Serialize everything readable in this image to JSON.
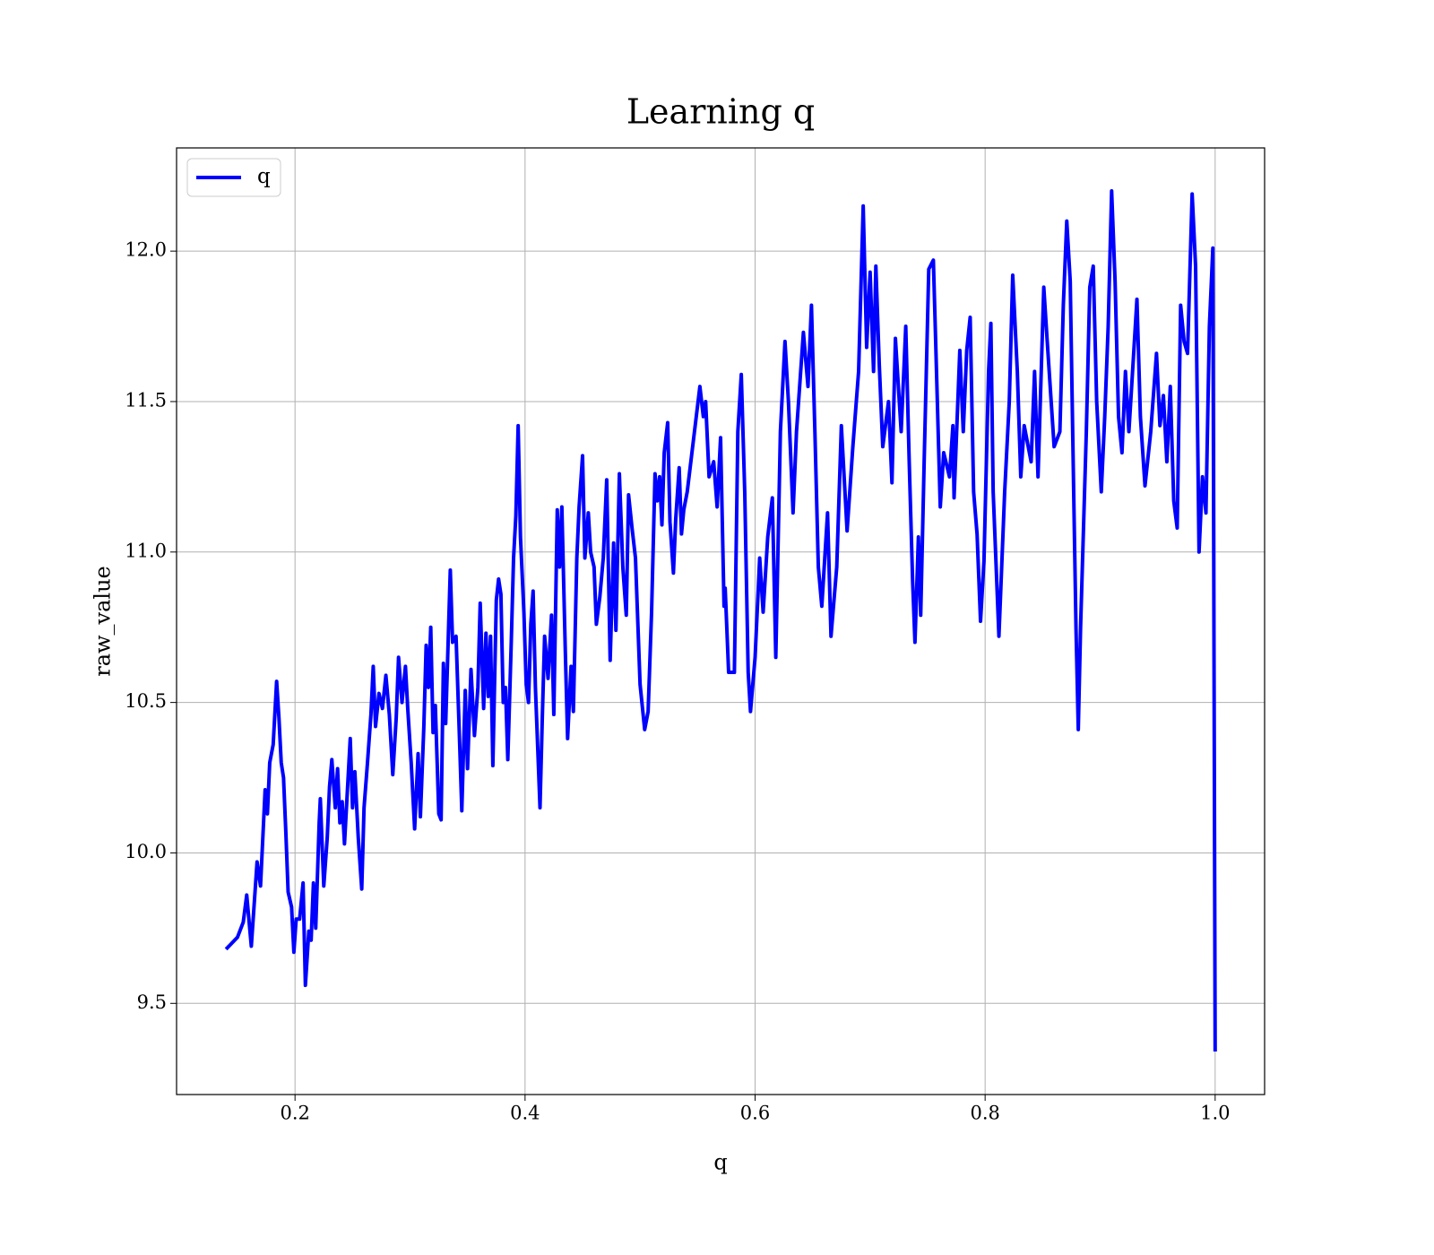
{
  "chart_data": {
    "type": "line",
    "title": "Learning q",
    "xlabel": "q",
    "ylabel": "raw_value",
    "x": [
      0.14,
      0.15,
      0.155,
      0.158,
      0.162,
      0.167,
      0.17,
      0.174,
      0.176,
      0.178,
      0.181,
      0.184,
      0.186,
      0.188,
      0.19,
      0.192,
      0.194,
      0.197,
      0.199,
      0.201,
      0.204,
      0.207,
      0.209,
      0.212,
      0.214,
      0.216,
      0.218,
      0.221,
      0.222,
      0.225,
      0.228,
      0.23,
      0.232,
      0.235,
      0.237,
      0.239,
      0.241,
      0.243,
      0.245,
      0.248,
      0.25,
      0.252,
      0.255,
      0.258,
      0.26,
      0.263,
      0.266,
      0.268,
      0.27,
      0.273,
      0.276,
      0.279,
      0.282,
      0.285,
      0.288,
      0.29,
      0.293,
      0.296,
      0.298,
      0.301,
      0.304,
      0.307,
      0.309,
      0.312,
      0.314,
      0.316,
      0.318,
      0.32,
      0.322,
      0.325,
      0.327,
      0.329,
      0.331,
      0.335,
      0.337,
      0.34,
      0.343,
      0.345,
      0.348,
      0.35,
      0.353,
      0.356,
      0.359,
      0.361,
      0.364,
      0.366,
      0.368,
      0.37,
      0.372,
      0.375,
      0.377,
      0.379,
      0.381,
      0.383,
      0.385,
      0.388,
      0.39,
      0.392,
      0.394,
      0.396,
      0.399,
      0.401,
      0.403,
      0.405,
      0.407,
      0.409,
      0.413,
      0.415,
      0.417,
      0.42,
      0.423,
      0.425,
      0.428,
      0.43,
      0.432,
      0.435,
      0.437,
      0.44,
      0.442,
      0.445,
      0.447,
      0.45,
      0.452,
      0.455,
      0.457,
      0.46,
      0.462,
      0.465,
      0.468,
      0.471,
      0.474,
      0.477,
      0.479,
      0.482,
      0.485,
      0.488,
      0.49,
      0.493,
      0.496,
      0.5,
      0.504,
      0.507,
      0.51,
      0.513,
      0.515,
      0.517,
      0.519,
      0.521,
      0.524,
      0.526,
      0.529,
      0.531,
      0.534,
      0.536,
      0.538,
      0.541,
      0.552,
      0.555,
      0.557,
      0.56,
      0.564,
      0.567,
      0.57,
      0.573,
      0.574,
      0.577,
      0.582,
      0.585,
      0.588,
      0.591,
      0.594,
      0.596,
      0.6,
      0.604,
      0.607,
      0.611,
      0.615,
      0.618,
      0.622,
      0.626,
      0.629,
      0.633,
      0.636,
      0.642,
      0.646,
      0.649,
      0.652,
      0.655,
      0.658,
      0.663,
      0.666,
      0.671,
      0.675,
      0.68,
      0.685,
      0.69,
      0.694,
      0.697,
      0.7,
      0.703,
      0.705,
      0.708,
      0.711,
      0.716,
      0.719,
      0.722,
      0.727,
      0.731,
      0.734,
      0.737,
      0.739,
      0.742,
      0.744,
      0.747,
      0.751,
      0.755,
      0.757,
      0.761,
      0.764,
      0.769,
      0.772,
      0.773,
      0.778,
      0.781,
      0.784,
      0.787,
      0.79,
      0.793,
      0.796,
      0.799,
      0.803,
      0.805,
      0.807,
      0.812,
      0.817,
      0.821,
      0.824,
      0.828,
      0.831,
      0.834,
      0.84,
      0.843,
      0.846,
      0.851,
      0.854,
      0.86,
      0.865,
      0.868,
      0.871,
      0.874,
      0.877,
      0.879,
      0.881,
      0.883,
      0.888,
      0.891,
      0.894,
      0.897,
      0.901,
      0.904,
      0.907,
      0.91,
      0.913,
      0.916,
      0.919,
      0.922,
      0.925,
      0.929,
      0.932,
      0.935,
      0.939,
      0.944,
      0.949,
      0.952,
      0.955,
      0.958,
      0.961,
      0.964,
      0.967,
      0.97,
      0.973,
      0.976,
      0.98,
      0.983,
      0.986,
      0.989,
      0.992,
      0.995,
      0.998,
      1.0
    ],
    "series": [
      {
        "name": "q",
        "color": "#0000ff",
        "values": [
          9.68,
          9.72,
          9.77,
          9.86,
          9.69,
          9.97,
          9.89,
          10.21,
          10.13,
          10.3,
          10.36,
          10.57,
          10.45,
          10.3,
          10.25,
          10.07,
          9.87,
          9.82,
          9.67,
          9.78,
          9.78,
          9.9,
          9.56,
          9.74,
          9.71,
          9.9,
          9.75,
          10.1,
          10.18,
          9.89,
          10.05,
          10.22,
          10.31,
          10.15,
          10.28,
          10.1,
          10.17,
          10.03,
          10.17,
          10.38,
          10.15,
          10.27,
          10.05,
          9.88,
          10.15,
          10.3,
          10.46,
          10.62,
          10.42,
          10.53,
          10.48,
          10.59,
          10.46,
          10.26,
          10.45,
          10.65,
          10.5,
          10.62,
          10.48,
          10.3,
          10.08,
          10.33,
          10.12,
          10.42,
          10.69,
          10.55,
          10.75,
          10.4,
          10.49,
          10.13,
          10.11,
          10.63,
          10.43,
          10.94,
          10.7,
          10.72,
          10.38,
          10.14,
          10.54,
          10.28,
          10.61,
          10.39,
          10.55,
          10.83,
          10.48,
          10.73,
          10.52,
          10.72,
          10.29,
          10.84,
          10.91,
          10.86,
          10.5,
          10.55,
          10.31,
          10.7,
          10.98,
          11.12,
          11.42,
          11.05,
          10.8,
          10.56,
          10.5,
          10.76,
          10.87,
          10.55,
          10.15,
          10.45,
          10.72,
          10.58,
          10.79,
          10.46,
          11.14,
          10.95,
          11.15,
          10.67,
          10.38,
          10.62,
          10.47,
          10.98,
          11.15,
          11.32,
          10.98,
          11.13,
          11.0,
          10.95,
          10.76,
          10.85,
          10.98,
          11.24,
          10.64,
          11.03,
          10.74,
          11.26,
          10.95,
          10.79,
          11.19,
          11.08,
          10.98,
          10.56,
          10.41,
          10.47,
          10.8,
          11.26,
          11.17,
          11.25,
          11.09,
          11.33,
          11.43,
          11.1,
          10.93,
          11.11,
          11.28,
          11.06,
          11.14,
          11.2,
          11.55,
          11.45,
          11.5,
          11.25,
          11.3,
          11.15,
          11.38,
          10.82,
          10.88,
          10.6,
          10.6,
          11.4,
          11.59,
          11.2,
          10.6,
          10.47,
          10.65,
          10.98,
          10.8,
          11.05,
          11.18,
          10.65,
          11.4,
          11.7,
          11.5,
          11.13,
          11.4,
          11.73,
          11.55,
          11.82,
          11.4,
          10.95,
          10.82,
          11.13,
          10.72,
          10.95,
          11.42,
          11.07,
          11.35,
          11.6,
          12.15,
          11.68,
          11.93,
          11.6,
          11.95,
          11.62,
          11.35,
          11.5,
          11.23,
          11.71,
          11.4,
          11.75,
          11.3,
          10.9,
          10.7,
          11.05,
          10.79,
          11.3,
          11.94,
          11.97,
          11.7,
          11.15,
          11.33,
          11.25,
          11.42,
          11.18,
          11.67,
          11.4,
          11.67,
          11.78,
          11.2,
          11.06,
          10.77,
          10.97,
          11.6,
          11.76,
          11.2,
          10.72,
          11.2,
          11.5,
          11.92,
          11.6,
          11.25,
          11.42,
          11.3,
          11.6,
          11.25,
          11.88,
          11.7,
          11.35,
          11.4,
          11.82,
          12.1,
          11.9,
          11.2,
          10.75,
          10.41,
          10.75,
          11.4,
          11.88,
          11.95,
          11.5,
          11.2,
          11.45,
          11.75,
          12.2,
          11.9,
          11.45,
          11.33,
          11.6,
          11.4,
          11.65,
          11.84,
          11.45,
          11.22,
          11.4,
          11.66,
          11.42,
          11.52,
          11.3,
          11.55,
          11.17,
          11.08,
          11.82,
          11.7,
          11.66,
          12.19,
          11.95,
          11.0,
          11.25,
          11.13,
          11.75,
          12.01,
          9.34
        ]
      }
    ],
    "xlim": [
      0.097,
      1.043
    ],
    "ylim": [
      9.197,
      12.343
    ],
    "xticks": [
      0.2,
      0.4,
      0.6,
      0.8,
      {
        "value": 1,
        "label": "1.0"
      }
    ],
    "yticks": [
      9.5,
      {
        "value": 10,
        "label": "10.0"
      },
      10.5,
      {
        "value": 11,
        "label": "11.0"
      },
      11.5,
      {
        "value": 12,
        "label": "12.0"
      }
    ],
    "grid": true,
    "legend": "upper left"
  }
}
